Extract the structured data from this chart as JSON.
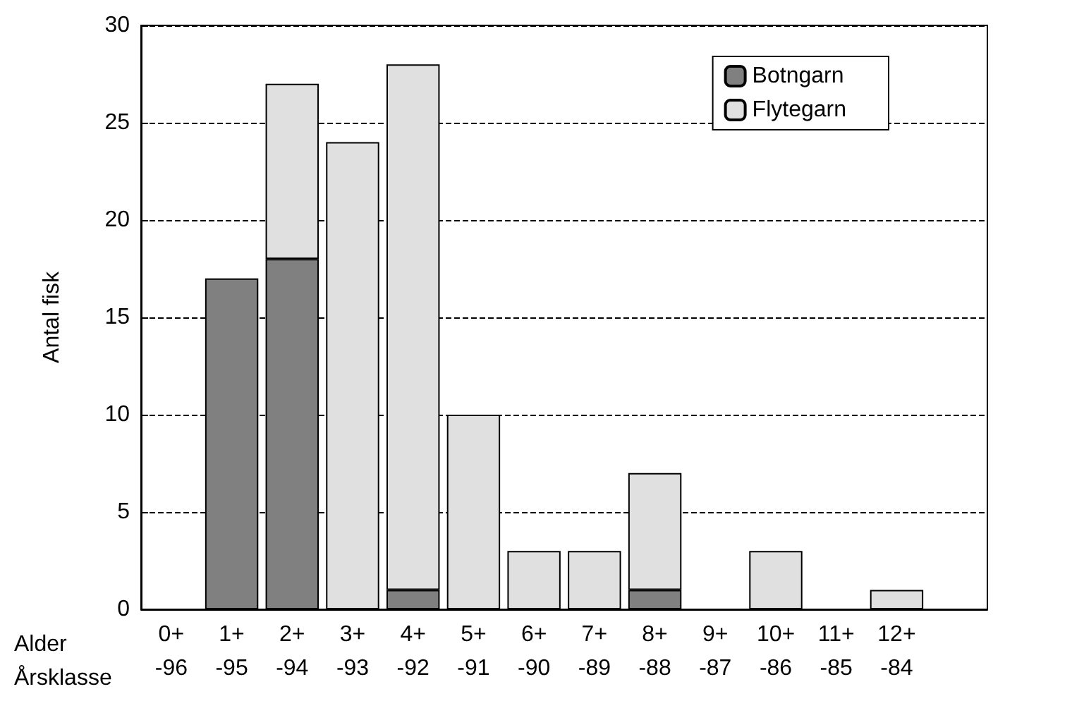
{
  "chart_data": {
    "type": "bar",
    "stacked": true,
    "ylabel": "Antal fisk",
    "categories": [
      "0+\n-96",
      "1+\n-95",
      "2+\n-94",
      "3+\n-93",
      "4+\n-92",
      "5+\n-91",
      "6+\n-90",
      "7+\n-89",
      "8+\n-88",
      "9+\n-87",
      "10+\n-86",
      "11+\n-85",
      "12+\n-84",
      null
    ],
    "series": [
      {
        "name": "Botngarn",
        "color": "#808080",
        "values": [
          0,
          17,
          18,
          0,
          1,
          0,
          0,
          0,
          1,
          0,
          0,
          0,
          0,
          0
        ]
      },
      {
        "name": "Flytegarn",
        "color": "#e0e0e0",
        "values": [
          0,
          0,
          9,
          24,
          27,
          10,
          3,
          3,
          6,
          0,
          3,
          0,
          1,
          0
        ]
      }
    ],
    "ylim": [
      0,
      30
    ],
    "yticks": [
      0,
      5,
      10,
      15,
      20,
      25,
      30
    ],
    "grid": "y",
    "legend": "top right",
    "annotations": [
      "Alder",
      "Årsklasse"
    ]
  }
}
